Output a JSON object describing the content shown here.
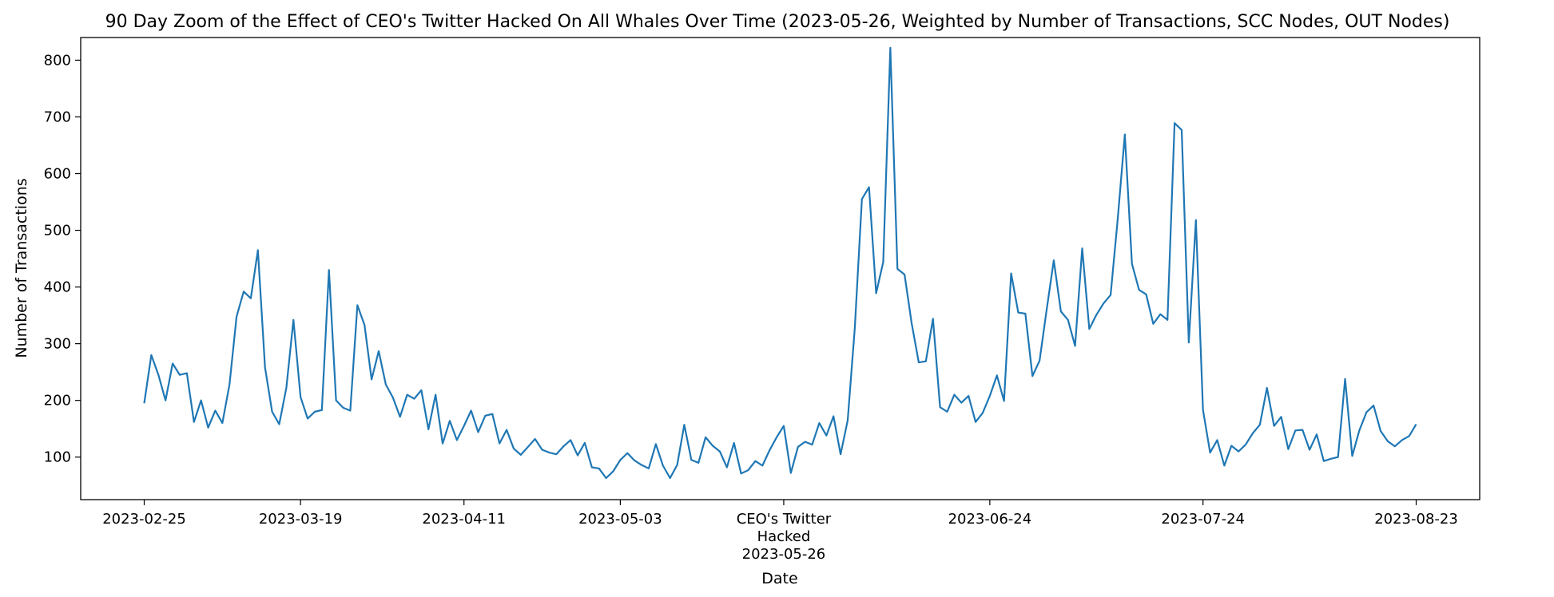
{
  "chart_data": {
    "type": "line",
    "title": "90 Day Zoom of the Effect of CEO's Twitter Hacked On All Whales Over Time (2023-05-26, Weighted by Number of Transactions, SCC Nodes, OUT Nodes)",
    "xlabel": "Date",
    "ylabel": "Number of Transactions",
    "x_start": "2023-02-25",
    "x_end": "2023-08-23",
    "ylim": [
      25,
      840
    ],
    "y_ticks": [
      100,
      200,
      300,
      400,
      500,
      600,
      700,
      800
    ],
    "x_ticks": [
      {
        "date": "2023-02-25",
        "label": "2023-02-25"
      },
      {
        "date": "2023-03-19",
        "label": "2023-03-19"
      },
      {
        "date": "2023-04-11",
        "label": "2023-04-11"
      },
      {
        "date": "2023-05-03",
        "label": "2023-05-03"
      },
      {
        "date": "2023-05-26",
        "label": "CEO's Twitter\nHacked\n2023-05-26"
      },
      {
        "date": "2023-06-24",
        "label": "2023-06-24"
      },
      {
        "date": "2023-07-24",
        "label": "2023-07-24"
      },
      {
        "date": "2023-08-23",
        "label": "2023-08-23"
      }
    ],
    "grid": false,
    "series": [
      {
        "color": "#1f77b4",
        "values": [
          195,
          280,
          245,
          200,
          265,
          245,
          248,
          162,
          200,
          152,
          182,
          160,
          228,
          348,
          392,
          380,
          465,
          258,
          180,
          158,
          222,
          342,
          206,
          168,
          180,
          183,
          430,
          200,
          187,
          182,
          368,
          333,
          237,
          287,
          228,
          205,
          171,
          210,
          203,
          218,
          149,
          210,
          124,
          164,
          130,
          155,
          182,
          144,
          173,
          176,
          124,
          148,
          115,
          104,
          118,
          132,
          113,
          108,
          105,
          119,
          130,
          103,
          125,
          82,
          80,
          63,
          75,
          95,
          107,
          94,
          86,
          80,
          123,
          85,
          63,
          86,
          157,
          95,
          90,
          135,
          120,
          110,
          82,
          125,
          71,
          77,
          93,
          85,
          112,
          135,
          155,
          72,
          118,
          127,
          122,
          160,
          138,
          172,
          105,
          165,
          328,
          555,
          576,
          389,
          444,
          822,
          432,
          422,
          336,
          267,
          269,
          344,
          188,
          180,
          210,
          196,
          208,
          162,
          178,
          208,
          244,
          199,
          424,
          355,
          353,
          243,
          270,
          360,
          447,
          357,
          342,
          296,
          468,
          326,
          351,
          371,
          386,
          520,
          669,
          441,
          395,
          387,
          335,
          352,
          342,
          689,
          677,
          302,
          518,
          183,
          108,
          130,
          85,
          120,
          110,
          122,
          142,
          157,
          222,
          155,
          171,
          114,
          147,
          148,
          113,
          140,
          93,
          97,
          100,
          238,
          102,
          147,
          179,
          191,
          146,
          128,
          119,
          130,
          137,
          158
        ]
      }
    ]
  }
}
